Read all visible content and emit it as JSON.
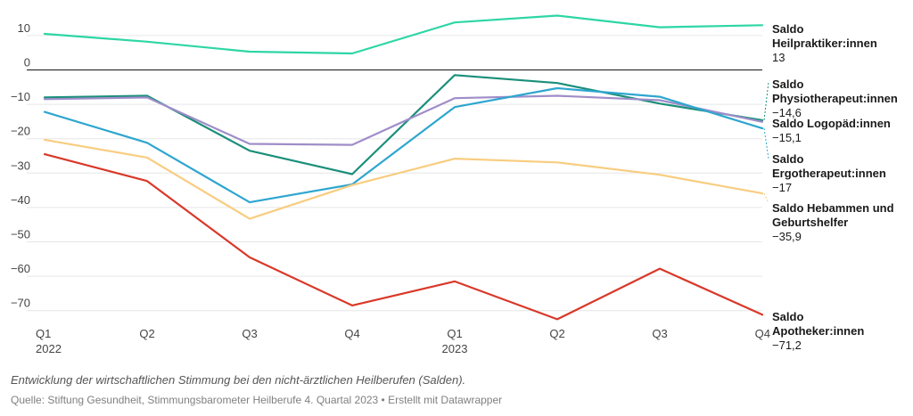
{
  "chart_data": {
    "type": "line",
    "x": [
      "Q1 2022",
      "Q2 2022",
      "Q3 2022",
      "Q4 2022",
      "Q1 2023",
      "Q2 2023",
      "Q3 2023",
      "Q4 2023"
    ],
    "x_tick_labels": [
      {
        "line1": "Q1",
        "line2": "2022"
      },
      {
        "line1": "Q2",
        "line2": ""
      },
      {
        "line1": "Q3",
        "line2": ""
      },
      {
        "line1": "Q4",
        "line2": ""
      },
      {
        "line1": "Q1",
        "line2": "2023"
      },
      {
        "line1": "Q2",
        "line2": ""
      },
      {
        "line1": "Q3",
        "line2": ""
      },
      {
        "line1": "Q4",
        "line2": ""
      }
    ],
    "y_ticks": [
      10,
      0,
      -10,
      -20,
      -30,
      -40,
      -50,
      -60,
      -70
    ],
    "y_tick_labels": [
      "10",
      "0",
      "−10",
      "−20",
      "−30",
      "−40",
      "−50",
      "−60",
      "−70"
    ],
    "ylim": [
      -74,
      13
    ],
    "grid": true,
    "series": [
      {
        "name": "Saldo Heilpraktiker:innen",
        "color": "#2ed6a5",
        "values": [
          10.5,
          8.2,
          5.3,
          4.8,
          13.8,
          15.8,
          12.4,
          13
        ],
        "label_lines": [
          "Saldo",
          "Heilpraktiker:innen"
        ],
        "value_label": "13"
      },
      {
        "name": "Saldo Physiotherapeut:innen",
        "color": "#1a8f7a",
        "values": [
          -8,
          -7.5,
          -23.5,
          -30.3,
          -1.5,
          -3.8,
          -9.8,
          -14.6
        ],
        "label_lines": [
          "Saldo",
          "Physiotherapeut:innen"
        ],
        "value_label": "−14,6"
      },
      {
        "name": "Saldo Logopäd:innen",
        "color": "#9f8dc9",
        "values": [
          -8.5,
          -8,
          -21.5,
          -21.8,
          -8.2,
          -7.5,
          -8.8,
          -15.1
        ],
        "label_lines": [
          "Saldo Logopäd:innen"
        ],
        "value_label": "−15,1"
      },
      {
        "name": "Saldo Ergotherapeut:innen",
        "color": "#2ea6cf",
        "values": [
          -12.2,
          -21.2,
          -38.5,
          -33.3,
          -10.8,
          -5.3,
          -7.8,
          -17
        ],
        "label_lines": [
          "Saldo",
          "Ergotherapeut:innen"
        ],
        "value_label": "−17"
      },
      {
        "name": "Saldo Hebammen und Geburtshelfer",
        "color": "#f8cd80",
        "values": [
          -20.3,
          -25.5,
          -43.3,
          -33.5,
          -25.8,
          -26.9,
          -30.5,
          -35.9
        ],
        "label_lines": [
          "Saldo Hebammen und",
          "Geburtshelfer"
        ],
        "value_label": "−35,9"
      },
      {
        "name": "Saldo Apotheker:innen",
        "color": "#d93829",
        "values": [
          -24.5,
          -32.3,
          -54.5,
          -68.5,
          -61.5,
          -72.5,
          -57.8,
          -71.2
        ],
        "label_lines": [
          "Saldo",
          "Apotheker:innen"
        ],
        "value_label": "−71,2"
      }
    ]
  },
  "caption": "Entwicklung der wirtschaftlichen Stimmung bei den nicht-ärztlichen Heilberufen (Salden).",
  "source": "Quelle: Stiftung Gesundheit, Stimmungsbarometer Heilberufe 4. Quartal 2023 • Erstellt mit Datawrapper",
  "colors": {
    "grid": "#e6e6e6",
    "zero_line": "#333333",
    "tick_text": "#444444"
  }
}
